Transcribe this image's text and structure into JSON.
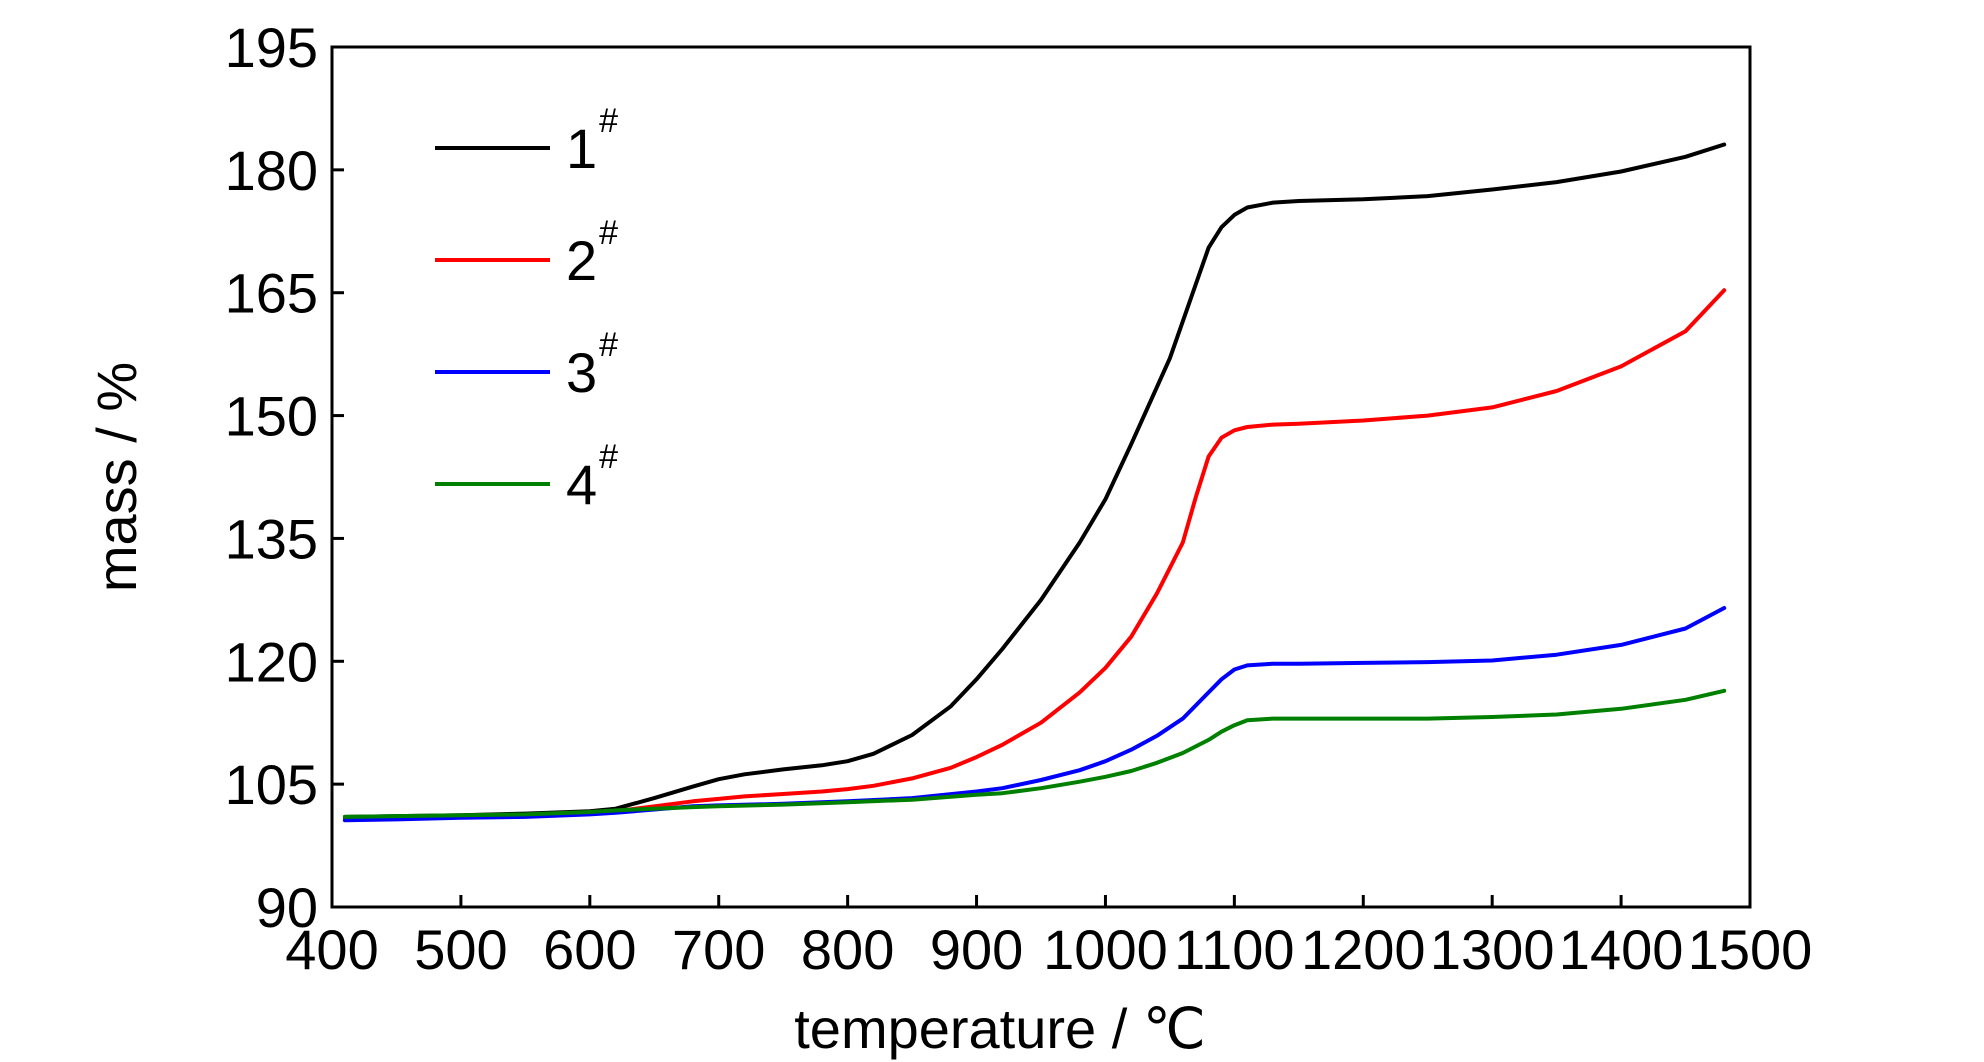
{
  "chart_data": {
    "type": "line",
    "title": "",
    "xlabel": "temperature / ℃",
    "ylabel": "mass / %",
    "xlim": [
      400,
      1500
    ],
    "ylim": [
      90,
      195
    ],
    "xticks": [
      400,
      500,
      600,
      700,
      800,
      900,
      1000,
      1100,
      1200,
      1300,
      1400,
      1500
    ],
    "yticks": [
      90,
      105,
      120,
      135,
      150,
      165,
      180,
      195
    ],
    "xtick_labels": [
      "400",
      "500",
      "600",
      "700",
      "800",
      "900",
      "1000",
      "1100",
      "1200",
      "1300",
      "1400",
      "1500"
    ],
    "ytick_labels": [
      "90",
      "105",
      "120",
      "135",
      "150",
      "165",
      "180",
      "195"
    ],
    "grid": false,
    "legend_position": "top-left",
    "series": [
      {
        "name": "1",
        "name_superscript": "#",
        "color": "#000000",
        "x": [
          410,
          450,
          500,
          550,
          600,
          620,
          650,
          680,
          700,
          720,
          750,
          780,
          800,
          820,
          850,
          880,
          900,
          920,
          950,
          980,
          1000,
          1020,
          1050,
          1070,
          1080,
          1090,
          1100,
          1110,
          1130,
          1150,
          1200,
          1250,
          1300,
          1350,
          1400,
          1450,
          1480
        ],
        "y": [
          101.0,
          101.1,
          101.2,
          101.4,
          101.7,
          102.0,
          103.3,
          104.7,
          105.6,
          106.2,
          106.8,
          107.3,
          107.8,
          108.7,
          111.0,
          114.5,
          117.8,
          121.5,
          127.5,
          134.5,
          139.8,
          146.5,
          157.0,
          166.0,
          170.5,
          173.0,
          174.5,
          175.4,
          176.0,
          176.2,
          176.4,
          176.8,
          177.6,
          178.5,
          179.8,
          181.6,
          183.1
        ]
      },
      {
        "name": "2",
        "name_superscript": "#",
        "color": "#ff0000",
        "x": [
          410,
          450,
          500,
          550,
          600,
          620,
          650,
          680,
          700,
          720,
          750,
          780,
          800,
          820,
          850,
          880,
          900,
          920,
          950,
          980,
          1000,
          1020,
          1040,
          1060,
          1070,
          1080,
          1090,
          1100,
          1110,
          1130,
          1150,
          1200,
          1250,
          1300,
          1350,
          1400,
          1450,
          1480
        ],
        "y": [
          100.8,
          100.9,
          101.0,
          101.1,
          101.4,
          101.7,
          102.3,
          102.9,
          103.2,
          103.5,
          103.8,
          104.1,
          104.4,
          104.8,
          105.7,
          107.0,
          108.3,
          109.8,
          112.5,
          116.2,
          119.2,
          123.0,
          128.3,
          134.5,
          140.0,
          145.0,
          147.3,
          148.2,
          148.6,
          148.9,
          149.0,
          149.4,
          150.0,
          151.0,
          153.0,
          156.0,
          160.3,
          165.3
        ]
      },
      {
        "name": "3",
        "name_superscript": "#",
        "color": "#0000ff",
        "x": [
          410,
          450,
          500,
          550,
          600,
          620,
          650,
          680,
          700,
          750,
          800,
          850,
          900,
          920,
          950,
          980,
          1000,
          1020,
          1040,
          1060,
          1080,
          1090,
          1100,
          1110,
          1130,
          1150,
          1200,
          1250,
          1300,
          1350,
          1400,
          1450,
          1480
        ],
        "y": [
          100.6,
          100.7,
          100.9,
          101.0,
          101.3,
          101.5,
          101.9,
          102.3,
          102.4,
          102.6,
          102.9,
          103.3,
          104.1,
          104.5,
          105.5,
          106.7,
          107.8,
          109.2,
          110.9,
          113.0,
          116.2,
          117.8,
          119.0,
          119.5,
          119.7,
          119.7,
          119.8,
          119.9,
          120.1,
          120.8,
          122.0,
          124.0,
          126.5
        ]
      },
      {
        "name": "4",
        "name_superscript": "#",
        "color": "#008000",
        "x": [
          410,
          450,
          500,
          550,
          600,
          620,
          650,
          680,
          700,
          750,
          800,
          850,
          900,
          920,
          950,
          980,
          1000,
          1020,
          1040,
          1060,
          1080,
          1090,
          1100,
          1110,
          1130,
          1150,
          1200,
          1250,
          1300,
          1350,
          1400,
          1450,
          1480
        ],
        "y": [
          101.0,
          101.1,
          101.2,
          101.3,
          101.6,
          101.8,
          102.0,
          102.2,
          102.3,
          102.5,
          102.8,
          103.1,
          103.7,
          103.9,
          104.5,
          105.3,
          105.9,
          106.6,
          107.6,
          108.8,
          110.4,
          111.4,
          112.2,
          112.8,
          113.0,
          113.0,
          113.0,
          113.0,
          113.2,
          113.5,
          114.2,
          115.3,
          116.4
        ]
      }
    ]
  }
}
